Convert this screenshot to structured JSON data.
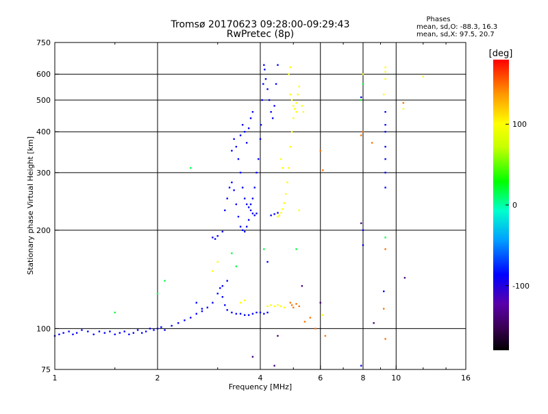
{
  "chart_data": {
    "type": "scatter",
    "title": "Tromsø 20170623 09:28:00-09:29:43",
    "subtitle": "RwPretec (8p)",
    "xlabel": "Frequency [MHz]",
    "ylabel": "Stationary phase Virtual Height [km]",
    "x_scale": "log2",
    "y_scale": "log",
    "xlim": [
      1,
      16
    ],
    "ylim": [
      75,
      750
    ],
    "x_ticks": [
      1,
      2,
      4,
      6,
      8,
      10,
      16
    ],
    "y_ticks": [
      75,
      100,
      200,
      300,
      400,
      500,
      600,
      750
    ],
    "x_tick_labels": [
      "1",
      "2",
      "4",
      "6",
      "8",
      "10",
      "16"
    ],
    "y_tick_labels": [
      "75",
      "100",
      "200",
      "300",
      "400",
      "500",
      "600",
      "750"
    ],
    "grid": true,
    "colorbar": {
      "label": "[deg]",
      "range": [
        -180,
        180
      ],
      "ticks": [
        100,
        0,
        -100
      ],
      "tick_labels": [
        "100",
        "0",
        "-100"
      ]
    },
    "stats": {
      "title": "Phases",
      "line_O": "mean, sd,O:  -88.3, 16.3",
      "line_X": "mean, sd,X:  97.5, 20.7"
    },
    "series": [
      {
        "name": "blue trace (O-mode, ~ -90 deg)",
        "phase": -90,
        "points": [
          [
            1.0,
            95
          ],
          [
            1.03,
            96
          ],
          [
            1.06,
            97
          ],
          [
            1.1,
            98
          ],
          [
            1.13,
            96
          ],
          [
            1.16,
            97
          ],
          [
            1.2,
            99
          ],
          [
            1.25,
            98
          ],
          [
            1.3,
            96
          ],
          [
            1.35,
            98
          ],
          [
            1.4,
            97
          ],
          [
            1.45,
            98
          ],
          [
            1.5,
            96
          ],
          [
            1.55,
            97
          ],
          [
            1.6,
            98
          ],
          [
            1.65,
            96
          ],
          [
            1.7,
            97
          ],
          [
            1.75,
            99
          ],
          [
            1.8,
            97
          ],
          [
            1.85,
            98
          ],
          [
            1.9,
            100
          ],
          [
            1.95,
            99
          ],
          [
            2.0,
            100
          ],
          [
            2.05,
            101
          ],
          [
            2.1,
            99
          ],
          [
            2.2,
            102
          ],
          [
            2.3,
            104
          ],
          [
            2.4,
            106
          ],
          [
            2.5,
            108
          ],
          [
            2.6,
            111
          ],
          [
            2.7,
            113
          ],
          [
            2.8,
            116
          ],
          [
            2.9,
            120
          ],
          [
            3.0,
            128
          ],
          [
            3.05,
            133
          ],
          [
            3.1,
            125
          ],
          [
            3.15,
            118
          ],
          [
            3.2,
            114
          ],
          [
            3.3,
            112
          ],
          [
            3.4,
            111
          ],
          [
            3.5,
            111
          ],
          [
            3.6,
            110
          ],
          [
            3.7,
            110
          ],
          [
            3.8,
            111
          ],
          [
            3.9,
            112
          ],
          [
            4.0,
            112
          ],
          [
            4.1,
            111
          ],
          [
            4.2,
            112
          ],
          [
            2.9,
            190
          ],
          [
            2.95,
            188
          ],
          [
            3.0,
            192
          ],
          [
            3.1,
            198
          ],
          [
            3.15,
            230
          ],
          [
            3.2,
            250
          ],
          [
            3.25,
            270
          ],
          [
            3.3,
            280
          ],
          [
            3.35,
            265
          ],
          [
            3.4,
            240
          ],
          [
            3.45,
            220
          ],
          [
            3.5,
            205
          ],
          [
            3.55,
            200
          ],
          [
            3.6,
            198
          ],
          [
            3.65,
            205
          ],
          [
            3.7,
            215
          ],
          [
            3.75,
            230
          ],
          [
            3.8,
            250
          ],
          [
            3.85,
            270
          ],
          [
            3.9,
            300
          ],
          [
            3.95,
            330
          ],
          [
            4.0,
            380
          ],
          [
            4.02,
            420
          ],
          [
            4.05,
            500
          ],
          [
            4.08,
            560
          ],
          [
            4.1,
            640
          ],
          [
            4.12,
            620
          ],
          [
            4.15,
            580
          ],
          [
            4.2,
            540
          ],
          [
            4.25,
            500
          ],
          [
            4.3,
            460
          ],
          [
            4.35,
            440
          ],
          [
            4.4,
            480
          ],
          [
            4.45,
            560
          ],
          [
            4.5,
            640
          ],
          [
            3.3,
            350
          ],
          [
            3.35,
            380
          ],
          [
            3.4,
            360
          ],
          [
            3.45,
            330
          ],
          [
            3.5,
            300
          ],
          [
            3.55,
            270
          ],
          [
            3.6,
            250
          ],
          [
            3.65,
            240
          ],
          [
            3.7,
            235
          ],
          [
            3.75,
            240
          ],
          [
            3.8,
            225
          ],
          [
            3.85,
            222
          ],
          [
            3.9,
            225
          ],
          [
            3.5,
            390
          ],
          [
            3.55,
            420
          ],
          [
            3.6,
            400
          ],
          [
            3.65,
            370
          ],
          [
            3.7,
            410
          ],
          [
            3.75,
            440
          ],
          [
            3.8,
            460
          ],
          [
            4.3,
            222
          ],
          [
            4.4,
            224
          ],
          [
            4.5,
            226
          ],
          [
            4.2,
            160
          ],
          [
            3.1,
            135
          ],
          [
            3.2,
            140
          ],
          [
            2.6,
            120
          ],
          [
            2.7,
            115
          ],
          [
            8.0,
            180
          ],
          [
            9.2,
            130
          ],
          [
            9.3,
            300
          ],
          [
            9.3,
            330
          ],
          [
            9.3,
            360
          ],
          [
            9.3,
            400
          ],
          [
            9.3,
            420
          ],
          [
            9.3,
            460
          ],
          [
            8.0,
            200
          ],
          [
            7.9,
            510
          ],
          [
            7.9,
            77
          ],
          [
            9.3,
            270
          ]
        ]
      },
      {
        "name": "yellow trace (X-mode, ~ +100 deg)",
        "phase": 100,
        "points": [
          [
            4.2,
            117
          ],
          [
            4.3,
            118
          ],
          [
            4.4,
            117
          ],
          [
            4.5,
            118
          ],
          [
            4.6,
            117
          ],
          [
            4.7,
            116
          ],
          [
            4.5,
            220
          ],
          [
            4.55,
            222
          ],
          [
            4.6,
            226
          ],
          [
            4.65,
            232
          ],
          [
            4.7,
            242
          ],
          [
            4.75,
            258
          ],
          [
            4.8,
            280
          ],
          [
            4.85,
            310
          ],
          [
            4.9,
            360
          ],
          [
            4.95,
            400
          ],
          [
            5.0,
            440
          ],
          [
            5.05,
            470
          ],
          [
            5.1,
            490
          ],
          [
            5.15,
            520
          ],
          [
            5.2,
            550
          ],
          [
            4.9,
            520
          ],
          [
            4.95,
            500
          ],
          [
            5.0,
            480
          ],
          [
            5.05,
            470
          ],
          [
            5.1,
            460
          ],
          [
            4.85,
            600
          ],
          [
            4.9,
            630
          ],
          [
            5.3,
            480
          ],
          [
            5.35,
            460
          ],
          [
            4.6,
            330
          ],
          [
            4.65,
            310
          ],
          [
            3.5,
            120
          ],
          [
            3.6,
            122
          ],
          [
            5.2,
            230
          ],
          [
            6.1,
            110
          ],
          [
            7.9,
            500
          ],
          [
            9.3,
            580
          ],
          [
            9.3,
            610
          ],
          [
            9.3,
            630
          ],
          [
            9.2,
            520
          ],
          [
            10.5,
            470
          ],
          [
            12.0,
            590
          ],
          [
            3.0,
            160
          ],
          [
            2.9,
            150
          ],
          [
            8.0,
            600
          ]
        ]
      },
      {
        "name": "red/orange scatter",
        "phase": 150,
        "points": [
          [
            4.9,
            120
          ],
          [
            4.95,
            118
          ],
          [
            5.0,
            116
          ],
          [
            5.1,
            119
          ],
          [
            5.2,
            117
          ],
          [
            6.0,
            350
          ],
          [
            6.1,
            305
          ],
          [
            7.9,
            390
          ],
          [
            8.0,
            400
          ],
          [
            8.5,
            370
          ],
          [
            9.2,
            115
          ],
          [
            9.3,
            175
          ],
          [
            9.3,
            93
          ],
          [
            10.5,
            490
          ],
          [
            5.4,
            105
          ],
          [
            5.6,
            108
          ],
          [
            5.8,
            100
          ],
          [
            6.2,
            95
          ]
        ]
      },
      {
        "name": "green/cyan scatter",
        "phase": 10,
        "points": [
          [
            2.1,
            140
          ],
          [
            2.5,
            310
          ],
          [
            3.3,
            170
          ],
          [
            3.4,
            155
          ],
          [
            2.0,
            128
          ],
          [
            1.5,
            112
          ],
          [
            4.1,
            175
          ],
          [
            7.9,
            500
          ],
          [
            8.0,
            560
          ],
          [
            9.3,
            190
          ],
          [
            5.1,
            175
          ]
        ]
      },
      {
        "name": "purple scatter",
        "phase": -140,
        "points": [
          [
            3.8,
            82
          ],
          [
            4.4,
            77
          ],
          [
            7.9,
            210
          ],
          [
            8.6,
            104
          ],
          [
            10.6,
            143
          ],
          [
            4.5,
            95
          ],
          [
            5.3,
            135
          ],
          [
            6.0,
            120
          ]
        ]
      }
    ]
  }
}
